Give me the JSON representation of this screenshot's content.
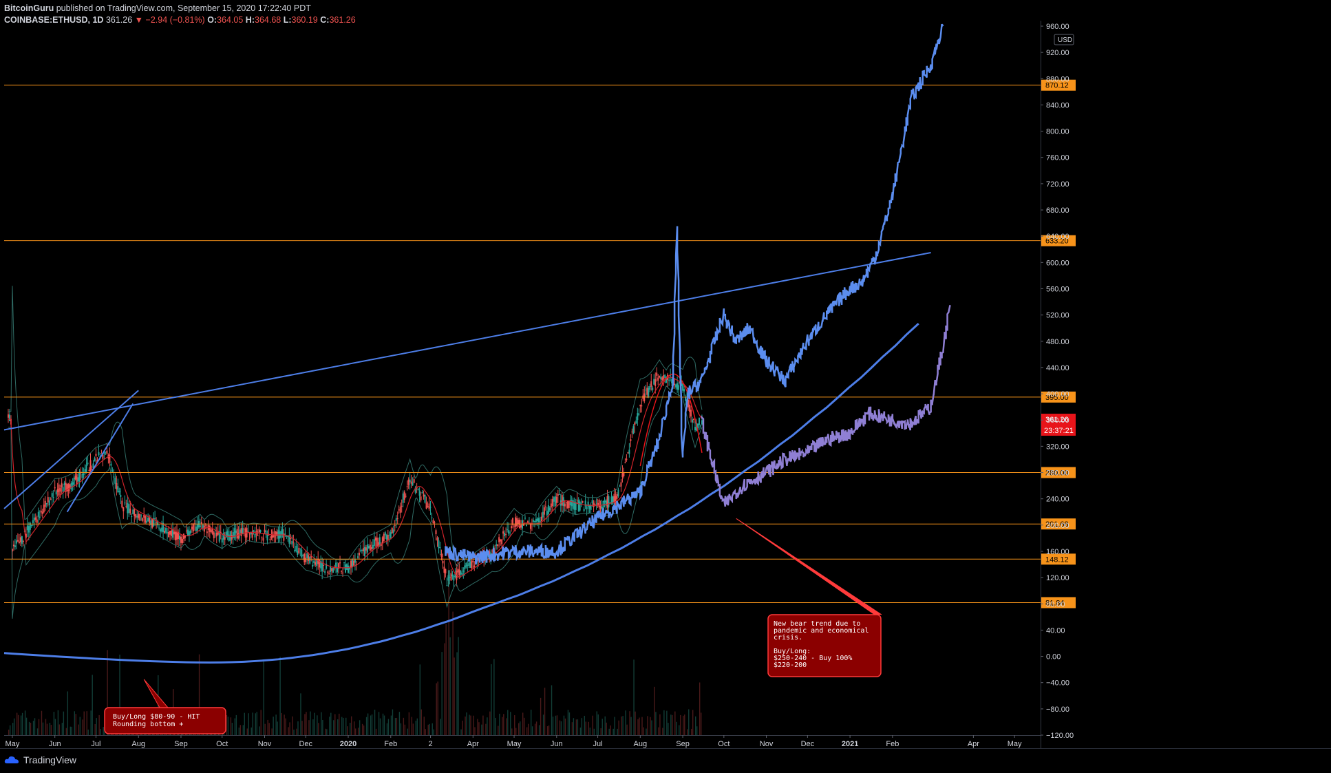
{
  "header": {
    "author": "BitcoinGuru",
    "published": "published on TradingView.com, September 15, 2020 17:22:40 PDT",
    "symbol": "COINBASE:ETHUSD, 1D",
    "last": "361.26",
    "change": "−2.94 (−0.81%)",
    "o_label": "O:",
    "o": "364.05",
    "h_label": "H:",
    "h": "364.68",
    "l_label": "L:",
    "l": "360.19",
    "c_label": "C:",
    "c": "361.26"
  },
  "footer": {
    "brand": "TradingView"
  },
  "colors": {
    "level": "#f7931a",
    "trend": "#4d7ee8",
    "projection_blue": "#5b8def",
    "projection_purple": "#8f7fd4",
    "candle_up": "#26a69a",
    "candle_down": "#ef5350",
    "note_bg": "#8b0000",
    "note_border": "#ff3b3b",
    "price_tag": "#e8141a"
  },
  "chart_data": {
    "type": "line",
    "axis": {
      "currency": "USD",
      "ylim": [
        -120,
        960
      ],
      "y_ticks": [
        960,
        920,
        880,
        840,
        800,
        760,
        720,
        680,
        640,
        600,
        560,
        520,
        480,
        440,
        400,
        360,
        320,
        280,
        240,
        200,
        160,
        120,
        80,
        40,
        0,
        -40,
        -80,
        -120
      ],
      "y_tick_labels": [
        "960.00",
        "920.00",
        "880.00",
        "840.00",
        "800.00",
        "760.00",
        "720.00",
        "680.00",
        "640.00",
        "600.00",
        "560.00",
        "520.00",
        "480.00",
        "440.00",
        "400.00",
        "360.00",
        "320.00",
        "280.00",
        "240.00",
        "200.00",
        "160.00",
        "120.00",
        "80.00",
        "40.00",
        "0.00",
        "−40.00",
        "−80.00",
        "−120.00"
      ],
      "x_labels": [
        "May",
        "Jun",
        "Jul",
        "Aug",
        "Sep",
        "Oct",
        "Nov",
        "Dec",
        "2020",
        "Feb",
        "2",
        "Apr",
        "May",
        "Jun",
        "Jul",
        "Aug",
        "Sep",
        "Oct",
        "Nov",
        "Dec",
        "2021",
        "Feb",
        "Apr",
        "May"
      ],
      "x_label_dates": [
        "2019-05-01",
        "2019-06-01",
        "2019-07-01",
        "2019-08-01",
        "2019-09-01",
        "2019-10-01",
        "2019-11-01",
        "2019-12-01",
        "2020-01-01",
        "2020-02-01",
        "2020-03-01",
        "2020-04-01",
        "2020-05-01",
        "2020-06-01",
        "2020-07-01",
        "2020-08-01",
        "2020-09-01",
        "2020-10-01",
        "2020-11-01",
        "2020-12-01",
        "2021-01-01",
        "2021-02-01",
        "2021-04-01",
        "2021-05-01"
      ]
    },
    "levels": [
      870.12,
      633.2,
      395.0,
      280.0,
      201.68,
      148.12,
      81.84
    ],
    "level_labels": [
      "870.12",
      "633.20",
      "395.00",
      "280.00",
      "201.68",
      "148.12",
      "81.84"
    ],
    "last_price": {
      "value": 361.26,
      "label": "361.26",
      "countdown": "23:37:21"
    },
    "price_series": [
      [
        "2019-05-01",
        160
      ],
      [
        "2019-05-15",
        200
      ],
      [
        "2019-06-01",
        250
      ],
      [
        "2019-06-15",
        265
      ],
      [
        "2019-07-01",
        300
      ],
      [
        "2019-07-10",
        310
      ],
      [
        "2019-07-20",
        230
      ],
      [
        "2019-08-01",
        215
      ],
      [
        "2019-08-15",
        200
      ],
      [
        "2019-09-01",
        180
      ],
      [
        "2019-09-15",
        200
      ],
      [
        "2019-10-01",
        180
      ],
      [
        "2019-10-15",
        190
      ],
      [
        "2019-11-01",
        185
      ],
      [
        "2019-11-15",
        185
      ],
      [
        "2019-12-01",
        150
      ],
      [
        "2019-12-15",
        135
      ],
      [
        "2020-01-01",
        135
      ],
      [
        "2020-01-15",
        165
      ],
      [
        "2020-02-01",
        185
      ],
      [
        "2020-02-15",
        270
      ],
      [
        "2020-03-01",
        225
      ],
      [
        "2020-03-13",
        115
      ],
      [
        "2020-04-01",
        140
      ],
      [
        "2020-04-15",
        160
      ],
      [
        "2020-05-01",
        205
      ],
      [
        "2020-05-15",
        200
      ],
      [
        "2020-06-01",
        240
      ],
      [
        "2020-06-15",
        230
      ],
      [
        "2020-07-01",
        230
      ],
      [
        "2020-07-15",
        240
      ],
      [
        "2020-08-01",
        385
      ],
      [
        "2020-08-15",
        430
      ],
      [
        "2020-09-01",
        410
      ],
      [
        "2020-09-10",
        350
      ],
      [
        "2020-09-15",
        361.26
      ]
    ],
    "projection_blue": [
      [
        "2020-03-12",
        160
      ],
      [
        "2020-04-01",
        150
      ],
      [
        "2020-05-01",
        160
      ],
      [
        "2020-06-01",
        160
      ],
      [
        "2020-07-01",
        210
      ],
      [
        "2020-08-01",
        250
      ],
      [
        "2020-08-15",
        330
      ],
      [
        "2020-08-25",
        420
      ],
      [
        "2020-08-28",
        650
      ],
      [
        "2020-09-01",
        300
      ],
      [
        "2020-09-05",
        400
      ],
      [
        "2020-09-15",
        420
      ],
      [
        "2020-10-01",
        520
      ],
      [
        "2020-10-10",
        480
      ],
      [
        "2020-10-20",
        500
      ],
      [
        "2020-11-01",
        450
      ],
      [
        "2020-11-15",
        420
      ],
      [
        "2020-12-01",
        480
      ],
      [
        "2020-12-15",
        520
      ],
      [
        "2021-01-01",
        560
      ],
      [
        "2021-01-10",
        570
      ],
      [
        "2021-01-20",
        610
      ],
      [
        "2021-02-01",
        700
      ],
      [
        "2021-02-15",
        850
      ],
      [
        "2021-03-01",
        900
      ],
      [
        "2021-03-10",
        960
      ]
    ],
    "projection_purple": [
      [
        "2020-09-15",
        360
      ],
      [
        "2020-10-01",
        230
      ],
      [
        "2020-10-15",
        260
      ],
      [
        "2020-11-01",
        280
      ],
      [
        "2020-11-15",
        300
      ],
      [
        "2020-12-01",
        310
      ],
      [
        "2020-12-15",
        330
      ],
      [
        "2021-01-01",
        340
      ],
      [
        "2021-01-15",
        370
      ],
      [
        "2021-02-01",
        360
      ],
      [
        "2021-02-15",
        355
      ],
      [
        "2021-03-01",
        380
      ],
      [
        "2021-03-10",
        470
      ],
      [
        "2021-03-15",
        530
      ]
    ],
    "annotations": [
      {
        "date": "2020-09-05",
        "value": 90,
        "lines": [
          "New bear trend due to",
          "pandemic and economical",
          "crisis.",
          "",
          "Buy/Long:",
          "$250-240 - Buy 100%",
          "$220-200"
        ]
      },
      {
        "date": "2019-07-15",
        "value": -110,
        "lines": [
          "Buy/Long $80-90 - HIT",
          "Rounding bottom +"
        ]
      }
    ]
  }
}
